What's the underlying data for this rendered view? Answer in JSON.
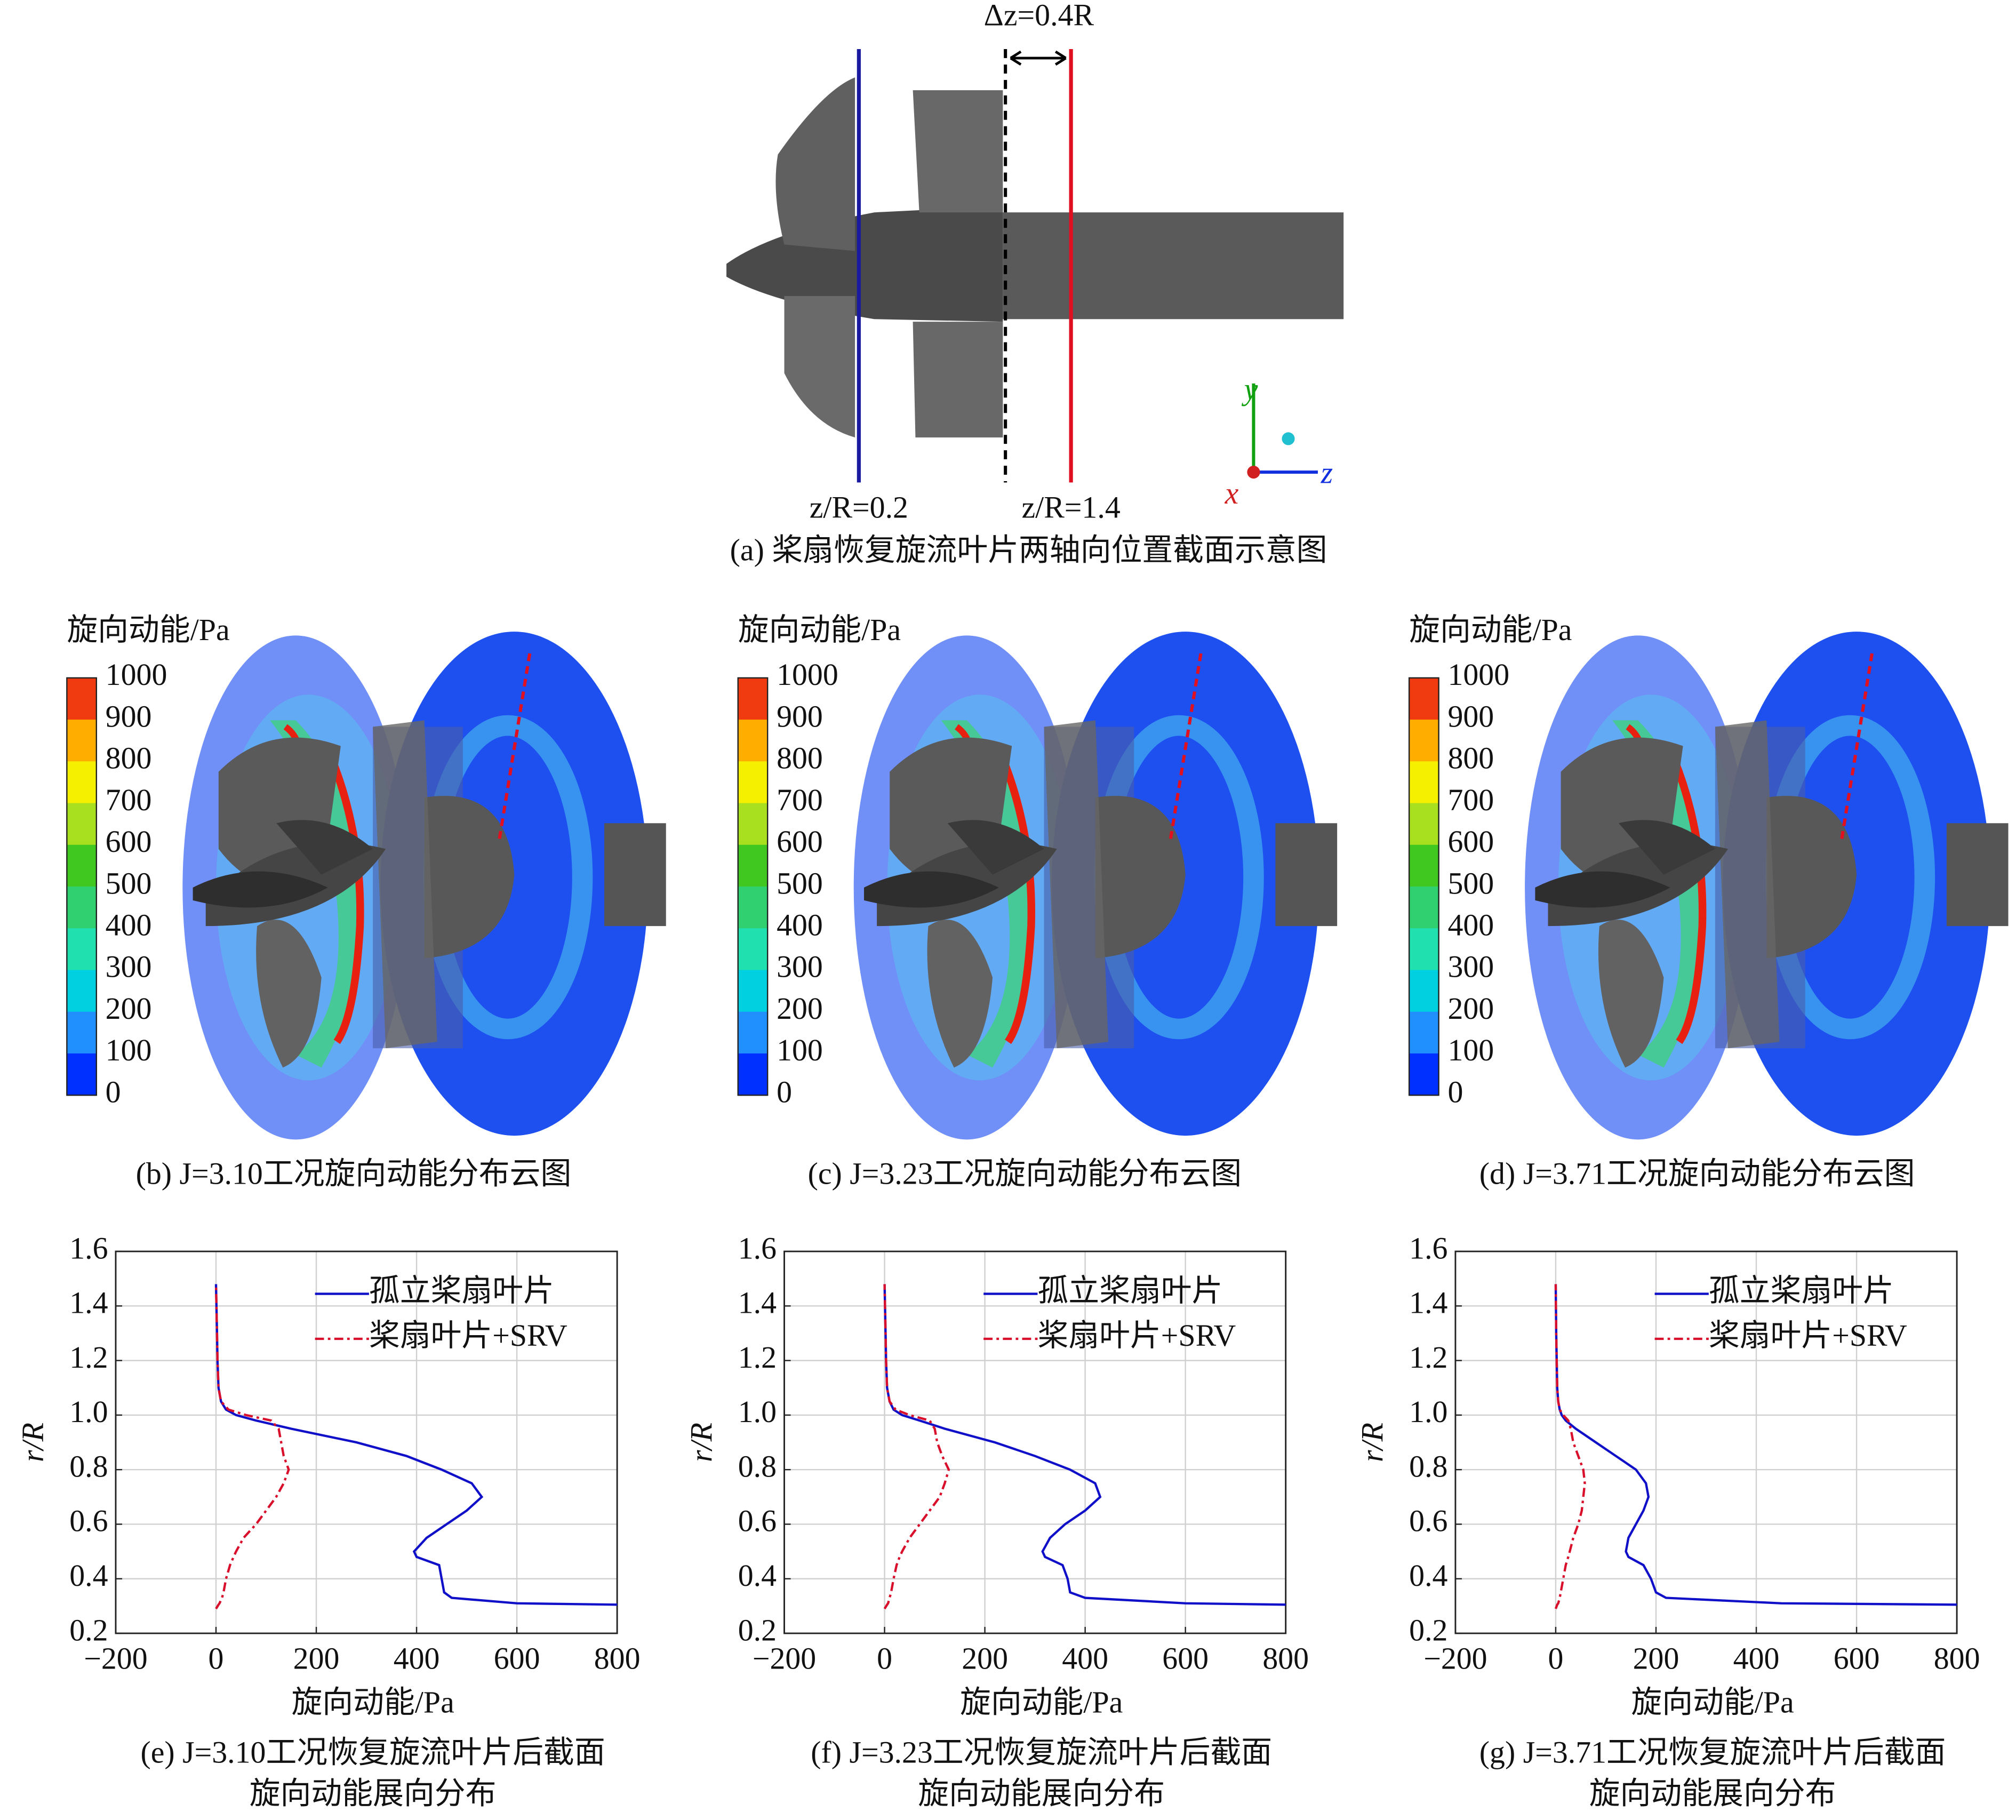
{
  "figure": {
    "panel_a": {
      "caption": "(a) 桨扇恢复旋流叶片两轴向位置截面示意图",
      "delta_label": "Δz=0.4R",
      "plane1_label": "z/R=0.2",
      "plane2_label": "z/R=1.4",
      "axis_y": "y",
      "axis_z": "z",
      "axis_x": "x"
    },
    "contour_panels": [
      {
        "caption": "(b) J=3.10工况旋向动能分布云图",
        "colorbar_title": "旋向动能/Pa",
        "colorbar_ticks": [
          "1000",
          "900",
          "800",
          "700",
          "600",
          "500",
          "400",
          "300",
          "200",
          "100",
          "0"
        ],
        "colorbar_colors": [
          "#f03a10",
          "#ffae00",
          "#f5f000",
          "#a8e020",
          "#40c820",
          "#30d070",
          "#20e0b0",
          "#00d0e0",
          "#2090ff",
          "#0030ff"
        ]
      },
      {
        "caption": "(c) J=3.23工况旋向动能分布云图",
        "colorbar_title": "旋向动能/Pa",
        "colorbar_ticks": [
          "1000",
          "900",
          "800",
          "700",
          "600",
          "500",
          "400",
          "300",
          "200",
          "100",
          "0"
        ],
        "colorbar_colors": [
          "#f03a10",
          "#ffae00",
          "#f5f000",
          "#a8e020",
          "#40c820",
          "#30d070",
          "#20e0b0",
          "#00d0e0",
          "#2090ff",
          "#0030ff"
        ]
      },
      {
        "caption": "(d) J=3.71工况旋向动能分布云图",
        "colorbar_title": "旋向动能/Pa",
        "colorbar_ticks": [
          "1000",
          "900",
          "800",
          "700",
          "600",
          "500",
          "400",
          "300",
          "200",
          "100",
          "0"
        ],
        "colorbar_colors": [
          "#f03a10",
          "#ffae00",
          "#f5f000",
          "#a8e020",
          "#40c820",
          "#30d070",
          "#20e0b0",
          "#00d0e0",
          "#2090ff",
          "#0030ff"
        ]
      }
    ]
  },
  "chart_data": [
    {
      "type": "line",
      "caption": [
        "(e) J=3.10工况恢复旋流叶片后截面",
        "旋向动能展向分布"
      ],
      "xlabel": "旋向动能/Pa",
      "ylabel": "r/R",
      "xlim": [
        -200,
        800
      ],
      "xticks": [
        {
          "value": -200,
          "label": "−200"
        },
        0,
        200,
        400,
        600,
        800
      ],
      "ylim": [
        0.2,
        1.6
      ],
      "yticks": [
        0.2,
        0.4,
        0.6,
        0.8,
        {
          "value": 1,
          "label": "1.0"
        },
        1.2,
        1.4,
        1.6
      ],
      "grid": true,
      "legend": "upper right",
      "y": [
        0.29,
        0.305,
        0.31,
        0.33,
        0.35,
        0.4,
        0.45,
        0.48,
        0.5,
        0.55,
        0.6,
        0.65,
        0.7,
        0.75,
        0.8,
        0.85,
        0.9,
        0.95,
        0.98,
        1.0,
        1.02,
        1.05,
        1.1,
        1.2,
        1.3,
        1.48
      ],
      "series": [
        {
          "name": "孤立桨扇叶片",
          "color": "#1010c8",
          "style": "solid",
          "values": [
            null,
            800,
            600,
            470,
            455,
            450,
            445,
            400,
            395,
            420,
            460,
            500,
            530,
            510,
            450,
            380,
            280,
            150,
            80,
            40,
            20,
            10,
            5,
            3,
            2,
            0
          ]
        },
        {
          "name": "桨扇叶片+SRV",
          "color": "#d8102c",
          "style": "dashdot",
          "values": [
            0,
            5,
            7,
            12,
            15,
            20,
            28,
            35,
            40,
            55,
            80,
            100,
            120,
            135,
            145,
            135,
            130,
            125,
            110,
            60,
            25,
            10,
            5,
            3,
            2,
            0
          ]
        }
      ]
    },
    {
      "type": "line",
      "caption": [
        "(f) J=3.23工况恢复旋流叶片后截面",
        "旋向动能展向分布"
      ],
      "xlabel": "旋向动能/Pa",
      "ylabel": "r/R",
      "xlim": [
        -200,
        800
      ],
      "xticks": [
        {
          "value": -200,
          "label": "−200"
        },
        0,
        200,
        400,
        600,
        800
      ],
      "ylim": [
        0.2,
        1.6
      ],
      "yticks": [
        0.2,
        0.4,
        0.6,
        0.8,
        {
          "value": 1,
          "label": "1.0"
        },
        1.2,
        1.4,
        1.6
      ],
      "grid": true,
      "legend": "upper right",
      "y": [
        0.29,
        0.305,
        0.31,
        0.33,
        0.35,
        0.4,
        0.45,
        0.48,
        0.5,
        0.55,
        0.6,
        0.65,
        0.7,
        0.75,
        0.8,
        0.85,
        0.9,
        0.95,
        0.98,
        1.0,
        1.02,
        1.05,
        1.1,
        1.2,
        1.3,
        1.48
      ],
      "series": [
        {
          "name": "孤立桨扇叶片",
          "color": "#1010c8",
          "style": "solid",
          "values": [
            null,
            800,
            600,
            400,
            370,
            365,
            355,
            320,
            315,
            330,
            360,
            400,
            430,
            420,
            370,
            300,
            220,
            120,
            70,
            35,
            18,
            10,
            5,
            3,
            2,
            0
          ]
        },
        {
          "name": "桨扇叶片+SRV",
          "color": "#d8102c",
          "style": "dashdot",
          "values": [
            0,
            5,
            7,
            10,
            13,
            18,
            24,
            30,
            35,
            50,
            70,
            90,
            110,
            120,
            128,
            115,
            105,
            100,
            90,
            50,
            22,
            10,
            5,
            3,
            2,
            0
          ]
        }
      ]
    },
    {
      "type": "line",
      "caption": [
        "(g) J=3.71工况恢复旋流叶片后截面",
        "旋向动能展向分布"
      ],
      "xlabel": "旋向动能/Pa",
      "ylabel": "r/R",
      "xlim": [
        -200,
        800
      ],
      "xticks": [
        {
          "value": -200,
          "label": "−200"
        },
        0,
        200,
        400,
        600,
        800
      ],
      "ylim": [
        0.2,
        1.6
      ],
      "yticks": [
        0.2,
        0.4,
        0.6,
        0.8,
        {
          "value": 1,
          "label": "1.0"
        },
        1.2,
        1.4,
        1.6
      ],
      "grid": true,
      "legend": "upper right",
      "y": [
        0.29,
        0.305,
        0.31,
        0.33,
        0.35,
        0.4,
        0.45,
        0.48,
        0.5,
        0.55,
        0.6,
        0.65,
        0.7,
        0.75,
        0.8,
        0.85,
        0.9,
        0.95,
        0.98,
        1.0,
        1.02,
        1.05,
        1.1,
        1.2,
        1.3,
        1.48
      ],
      "series": [
        {
          "name": "孤立桨扇叶片",
          "color": "#1010c8",
          "style": "solid",
          "values": [
            null,
            800,
            450,
            220,
            200,
            190,
            175,
            145,
            140,
            145,
            160,
            175,
            185,
            180,
            160,
            120,
            80,
            40,
            20,
            12,
            8,
            5,
            3,
            2,
            1,
            0
          ]
        },
        {
          "name": "桨扇叶片+SRV",
          "color": "#d8102c",
          "style": "dashdot",
          "values": [
            0,
            3,
            5,
            8,
            10,
            15,
            20,
            25,
            28,
            35,
            45,
            52,
            55,
            58,
            55,
            45,
            35,
            30,
            25,
            15,
            8,
            5,
            3,
            2,
            1,
            0
          ]
        }
      ]
    }
  ]
}
